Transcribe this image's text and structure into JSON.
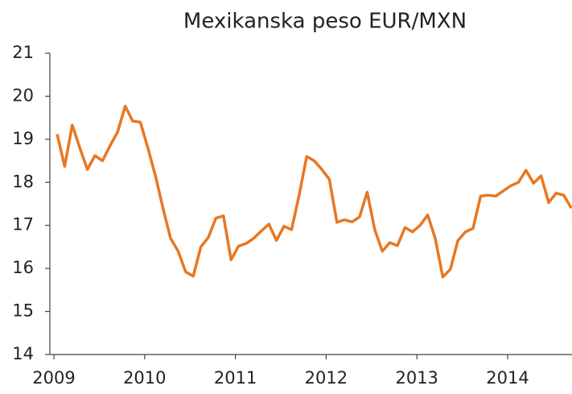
{
  "chart_data": {
    "type": "line",
    "title": "Mexikanska peso EUR/MXN",
    "categories": [
      "2009",
      null,
      null,
      null,
      null,
      null,
      null,
      null,
      null,
      null,
      null,
      null,
      "2010",
      null,
      null,
      null,
      null,
      null,
      null,
      null,
      null,
      null,
      null,
      null,
      "2011",
      null,
      null,
      null,
      null,
      null,
      null,
      null,
      null,
      null,
      null,
      null,
      "2012",
      null,
      null,
      null,
      null,
      null,
      null,
      null,
      null,
      null,
      null,
      null,
      "2013",
      null,
      null,
      null,
      null,
      null,
      null,
      null,
      null,
      null,
      null,
      null,
      "2014",
      null,
      null,
      null,
      null,
      null,
      null,
      null,
      null
    ],
    "series": [
      {
        "name": "EUR/MXN",
        "color": "#e87722",
        "values": [
          19.12,
          18.37,
          19.33,
          18.8,
          18.3,
          18.62,
          18.5,
          18.85,
          19.17,
          19.77,
          19.42,
          19.4,
          18.8,
          18.15,
          17.4,
          16.7,
          16.4,
          15.92,
          15.82,
          16.5,
          16.72,
          17.17,
          17.22,
          16.2,
          16.52,
          16.58,
          16.7,
          16.87,
          17.03,
          16.65,
          16.98,
          16.9,
          17.7,
          18.6,
          18.5,
          18.3,
          18.07,
          17.07,
          17.13,
          17.08,
          17.2,
          17.77,
          16.9,
          16.4,
          16.6,
          16.53,
          16.95,
          16.85,
          17.0,
          17.24,
          16.7,
          15.8,
          15.98,
          16.65,
          16.85,
          16.93,
          17.68,
          17.7,
          17.68,
          17.8,
          17.92,
          18.0,
          18.28,
          17.98,
          18.15,
          17.53,
          17.75,
          17.7,
          17.4
        ]
      }
    ],
    "ylim": [
      14,
      21
    ],
    "yticks": [
      14,
      15,
      16,
      17,
      18,
      19,
      20,
      21
    ],
    "grid": false
  }
}
